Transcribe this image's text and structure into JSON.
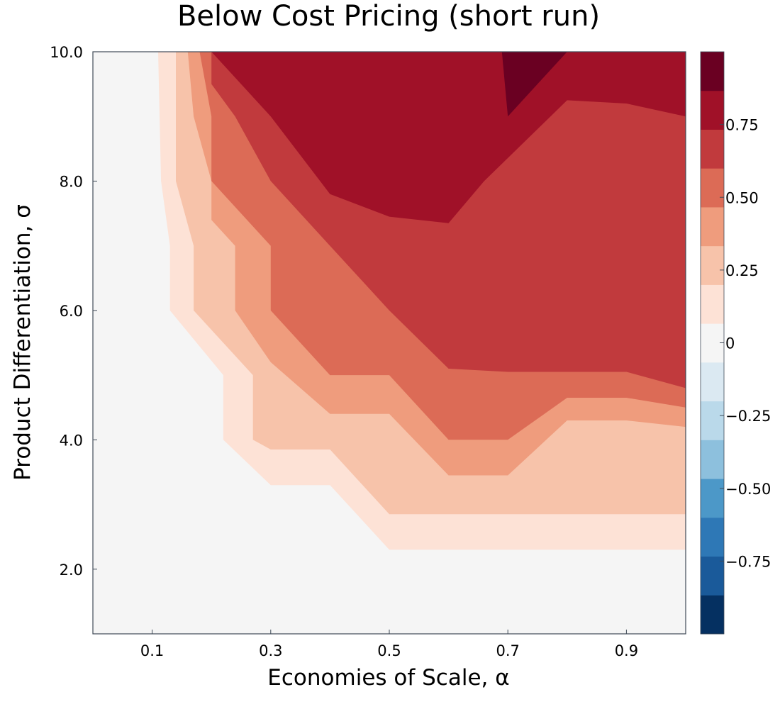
{
  "chart_data": {
    "type": "contour",
    "title": "Below Cost Pricing (short run)",
    "xlabel": "Economies of Scale, α",
    "ylabel": "Product Differentiation, σ",
    "xlim": [
      0.0,
      1.0
    ],
    "ylim": [
      1.0,
      10.0
    ],
    "x_ticks": [
      0.1,
      0.3,
      0.5,
      0.7,
      0.9
    ],
    "x_tick_labels": [
      "0.1",
      "0.3",
      "0.5",
      "0.7",
      "0.9"
    ],
    "y_ticks": [
      2.0,
      4.0,
      6.0,
      8.0,
      10.0
    ],
    "y_tick_labels": [
      "2.0",
      "4.0",
      "6.0",
      "8.0",
      "10.0"
    ],
    "grid": false,
    "colorbar": {
      "range": [
        -1.0,
        1.0
      ],
      "ticks": [
        0.75,
        0.5,
        0.25,
        0,
        -0.25,
        -0.5,
        -0.75
      ],
      "tick_labels": [
        "0.75",
        "0.50",
        "0.25",
        "0",
        "−0.25",
        "−0.50",
        "−0.75"
      ],
      "level_colors": [
        "#053061",
        "#1a5a9a",
        "#2e78b6",
        "#4c98c8",
        "#8dc0dd",
        "#bad9ea",
        "#dbe9f2",
        "#f5f5f5",
        "#fde2d6",
        "#f7c3aa",
        "#ef9c7d",
        "#dc6b56",
        "#c13a3d",
        "#a01128",
        "#6a0022"
      ]
    },
    "contour_levels": [
      {
        "level": 0.125,
        "color": "#fde2d6",
        "boundary": [
          [
            0.11,
            10
          ],
          [
            0.115,
            8.0
          ],
          [
            0.13,
            7.0
          ],
          [
            0.13,
            6.0
          ],
          [
            0.22,
            5.0
          ],
          [
            0.22,
            4.0
          ],
          [
            0.3,
            3.3
          ],
          [
            0.4,
            3.3
          ],
          [
            0.5,
            2.3
          ],
          [
            0.6,
            2.3
          ],
          [
            1.0,
            2.3
          ]
        ]
      },
      {
        "level": 0.25,
        "color": "#f7c3aa",
        "boundary": [
          [
            0.14,
            10
          ],
          [
            0.14,
            8.0
          ],
          [
            0.17,
            7.0
          ],
          [
            0.17,
            6.0
          ],
          [
            0.27,
            5.0
          ],
          [
            0.27,
            4.0
          ],
          [
            0.3,
            3.85
          ],
          [
            0.4,
            3.85
          ],
          [
            0.5,
            2.85
          ],
          [
            1.0,
            2.85
          ]
        ]
      },
      {
        "level": 0.375,
        "color": "#ef9c7d",
        "boundary": [
          [
            0.16,
            10
          ],
          [
            0.17,
            9.0
          ],
          [
            0.2,
            8.0
          ],
          [
            0.2,
            7.4
          ],
          [
            0.24,
            7.0
          ],
          [
            0.24,
            6.0
          ],
          [
            0.3,
            5.2
          ],
          [
            0.4,
            4.4
          ],
          [
            0.5,
            4.4
          ],
          [
            0.6,
            3.45
          ],
          [
            0.7,
            3.45
          ],
          [
            0.8,
            4.3
          ],
          [
            0.9,
            4.3
          ],
          [
            1.0,
            4.2
          ]
        ]
      },
      {
        "level": 0.5,
        "color": "#dc6b56",
        "boundary": [
          [
            0.18,
            10
          ],
          [
            0.2,
            9.0
          ],
          [
            0.2,
            8.0
          ],
          [
            0.3,
            7.0
          ],
          [
            0.3,
            6.0
          ],
          [
            0.4,
            5.0
          ],
          [
            0.5,
            5.0
          ],
          [
            0.6,
            4.0
          ],
          [
            0.7,
            4.0
          ],
          [
            0.8,
            4.65
          ],
          [
            0.9,
            4.65
          ],
          [
            1.0,
            4.5
          ]
        ]
      },
      {
        "level": 0.625,
        "color": "#c13a3d",
        "boundary": [
          [
            0.2,
            10
          ],
          [
            0.2,
            9.5
          ],
          [
            0.24,
            9.0
          ],
          [
            0.3,
            8.0
          ],
          [
            0.4,
            7.0
          ],
          [
            0.5,
            6.0
          ],
          [
            0.6,
            5.1
          ],
          [
            0.7,
            5.05
          ],
          [
            0.9,
            5.05
          ],
          [
            1.0,
            4.8
          ]
        ]
      },
      {
        "level": 0.75,
        "color": "#a01128",
        "boundary": [
          [
            0.2,
            10
          ],
          [
            0.3,
            9.0
          ],
          [
            0.4,
            7.8
          ],
          [
            0.5,
            7.45
          ],
          [
            0.6,
            7.35
          ],
          [
            0.66,
            8.0
          ],
          [
            0.8,
            9.25
          ],
          [
            0.9,
            9.2
          ],
          [
            1.0,
            9.0
          ]
        ]
      },
      {
        "level": 0.875,
        "color": "#6a0022",
        "boundary": [
          [
            0.69,
            10
          ],
          [
            0.7,
            9.0
          ],
          [
            0.8,
            10.0
          ]
        ]
      }
    ]
  }
}
